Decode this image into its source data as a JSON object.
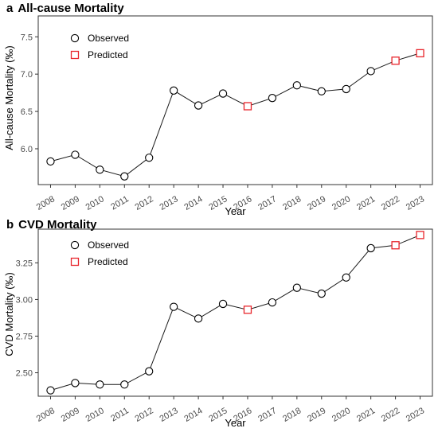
{
  "chart_data": [
    {
      "type": "line",
      "panel_letter": "a",
      "title": "All-cause Mortality",
      "xlabel": "Year",
      "ylabel": "All-cause Mortality (‰)",
      "x": [
        "2008",
        "2009",
        "2010",
        "2011",
        "2012",
        "2013",
        "2014",
        "2015",
        "2016",
        "2017",
        "2018",
        "2019",
        "2020",
        "2021",
        "2022",
        "2023"
      ],
      "values": [
        5.83,
        5.92,
        5.72,
        5.63,
        5.88,
        6.78,
        6.58,
        6.74,
        6.57,
        6.68,
        6.85,
        6.77,
        6.8,
        7.04,
        7.18,
        7.28
      ],
      "predicted": [
        false,
        false,
        false,
        false,
        false,
        false,
        false,
        false,
        true,
        false,
        false,
        false,
        false,
        false,
        true,
        true
      ],
      "yticks": [
        6.0,
        6.5,
        7.0,
        7.5
      ],
      "ytick_labels": [
        "6.0",
        "6.5",
        "7.0",
        "7.5"
      ],
      "ylim": [
        5.52,
        7.78
      ],
      "grid": false,
      "legend_position": "top-left",
      "legend": [
        {
          "label": "Observed",
          "marker": "circle",
          "color": "#000000"
        },
        {
          "label": "Predicted",
          "marker": "square",
          "color": "#e8262c"
        }
      ]
    },
    {
      "type": "line",
      "panel_letter": "b",
      "title": "CVD Mortality",
      "xlabel": "Year",
      "ylabel": "CVD Mortality (‰)",
      "x": [
        "2008",
        "2009",
        "2010",
        "2011",
        "2012",
        "2013",
        "2014",
        "2015",
        "2016",
        "2017",
        "2018",
        "2019",
        "2020",
        "2021",
        "2022",
        "2023"
      ],
      "values": [
        2.38,
        2.43,
        2.42,
        2.42,
        2.51,
        2.95,
        2.87,
        2.97,
        2.93,
        2.98,
        3.08,
        3.04,
        3.15,
        3.35,
        3.37,
        3.44
      ],
      "predicted": [
        false,
        false,
        false,
        false,
        false,
        false,
        false,
        false,
        true,
        false,
        false,
        false,
        false,
        false,
        true,
        true
      ],
      "yticks": [
        2.5,
        2.75,
        3.0,
        3.25
      ],
      "ytick_labels": [
        "2.50",
        "2.75",
        "3.00",
        "3.25"
      ],
      "ylim": [
        2.34,
        3.48
      ],
      "grid": false,
      "legend_position": "top-left",
      "legend": [
        {
          "label": "Observed",
          "marker": "circle",
          "color": "#000000"
        },
        {
          "label": "Predicted",
          "marker": "square",
          "color": "#e8262c"
        }
      ]
    }
  ]
}
